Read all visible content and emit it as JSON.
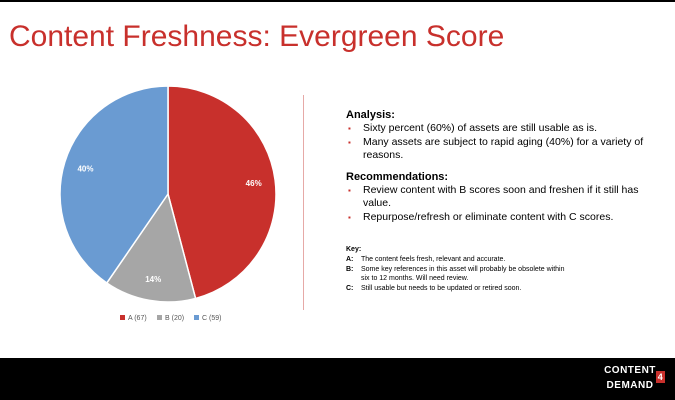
{
  "title": "Content Freshness: Evergreen Score",
  "chart_data": {
    "type": "pie",
    "categories": [
      "A",
      "B",
      "C"
    ],
    "counts": [
      67,
      20,
      59
    ],
    "percent_labels": [
      "46%",
      "14%",
      "40%"
    ],
    "values": [
      67,
      20,
      59
    ],
    "colors": [
      "#c8302c",
      "#a6a6a6",
      "#6a9bd2"
    ],
    "legend": [
      "A (67)",
      "B (20)",
      "C (59)"
    ],
    "legend_position": "bottom"
  },
  "analysis": {
    "heading": "Analysis:",
    "bullets": [
      "Sixty percent (60%) of assets are still usable as is.",
      "Many assets are subject to rapid aging (40%) for a variety of reasons."
    ]
  },
  "recommendations": {
    "heading": "Recommendations:",
    "bullets": [
      "Review content with B scores soon and freshen if it still has value.",
      "Repurpose/refresh or eliminate content with C scores."
    ]
  },
  "key": {
    "heading": "Key:",
    "rows": [
      {
        "letter": "A:",
        "text": "The content feels fresh, relevant and accurate."
      },
      {
        "letter": "B:",
        "text": "Some key references in this asset will probably be obsolete within six to 12 months. Will need review."
      },
      {
        "letter": "C:",
        "text": "Still usable but needs to be updated or retired soon."
      }
    ]
  },
  "logo": {
    "line1": "CONTENT",
    "line2": "DEMAND",
    "mark": "4"
  }
}
